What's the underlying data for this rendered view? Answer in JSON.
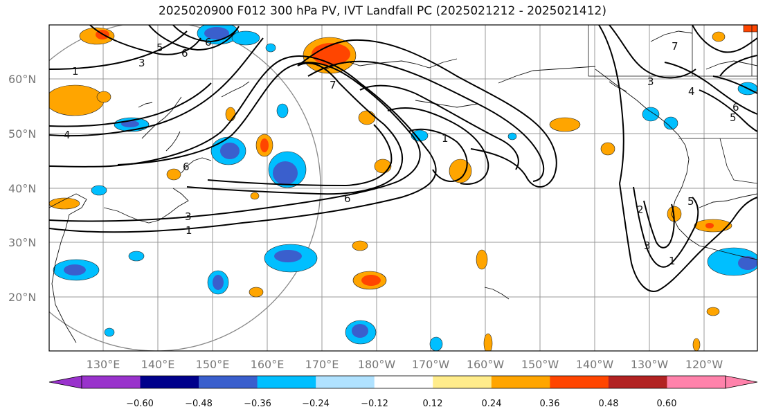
{
  "title": "2025020900 F012 300 hPa PV, IVT Landfall PC (2025021212 - 2025021412)",
  "lat_labels": [
    "60°N",
    "50°N",
    "40°N",
    "30°N",
    "20°N"
  ],
  "lon_labels": [
    "130°E",
    "140°E",
    "150°E",
    "160°E",
    "170°E",
    "180°W",
    "170°W",
    "160°W",
    "150°W",
    "140°W",
    "130°W",
    "120°W"
  ],
  "colorbar": {
    "ticks": [
      "−0.60",
      "−0.48",
      "−0.36",
      "−0.24",
      "−0.12",
      "0.12",
      "0.24",
      "0.36",
      "0.48",
      "0.60"
    ],
    "colors": [
      "#9932cc",
      "#00008b",
      "#3a5fcd",
      "#00bfff",
      "#b0e2ff",
      "#ffffff",
      "#ffec8b",
      "#ffa500",
      "#ff4500",
      "#b22222",
      "#ff82ab"
    ]
  },
  "contour_labels": [
    "1",
    "3",
    "6",
    "4",
    "7",
    "6",
    "5",
    "3",
    "1",
    "6",
    "3",
    "2",
    "3",
    "4",
    "5",
    "6",
    "7",
    "1",
    "5",
    "6",
    "1"
  ]
}
